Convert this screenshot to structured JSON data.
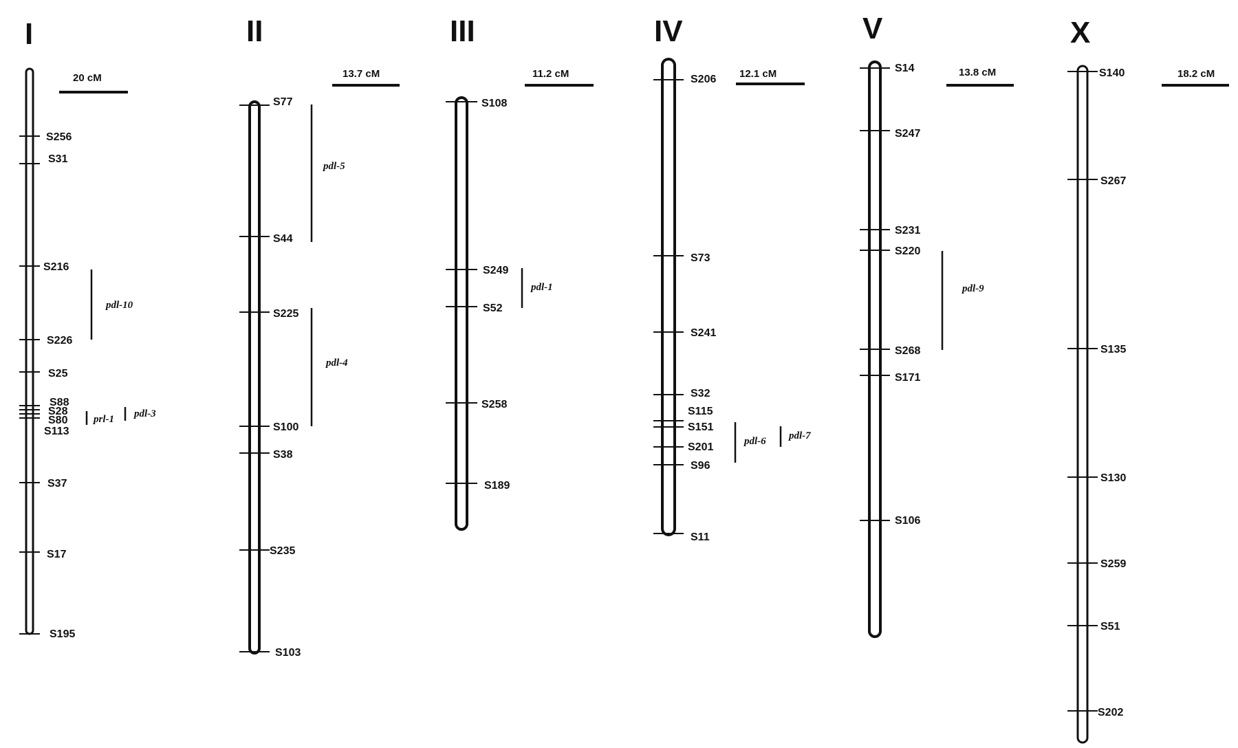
{
  "chromosomes": [
    {
      "name": "I",
      "scale": "20 cM",
      "markers": [
        "S256",
        "S31",
        "S216",
        "S226",
        "S25",
        "S88",
        "S28",
        "S80",
        "S113",
        "S37",
        "S17",
        "S195"
      ],
      "qtls": [
        "pdl-10",
        "prl-1",
        "pdl-3"
      ]
    },
    {
      "name": "II",
      "scale": "13.7 cM",
      "markers": [
        "S77",
        "S44",
        "S225",
        "S100",
        "S38",
        "S235",
        "S103"
      ],
      "qtls": [
        "pdl-5",
        "pdl-4"
      ]
    },
    {
      "name": "III",
      "scale": "11.2 cM",
      "markers": [
        "S108",
        "S249",
        "S52",
        "S258",
        "S189"
      ],
      "qtls": [
        "pdl-1"
      ]
    },
    {
      "name": "IV",
      "scale": "12.1 cM",
      "markers": [
        "S206",
        "S73",
        "S241",
        "S32",
        "S115",
        "S151",
        "S201",
        "S96",
        "S11"
      ],
      "qtls": [
        "pdl-6",
        "pdl-7"
      ]
    },
    {
      "name": "V",
      "scale": "13.8 cM",
      "markers": [
        "S14",
        "S247",
        "S231",
        "S220",
        "S268",
        "S171",
        "S106"
      ],
      "qtls": [
        "pdl-9"
      ]
    },
    {
      "name": "X",
      "scale": "18.2 cM",
      "markers": [
        "S140",
        "S267",
        "S135",
        "S130",
        "S259",
        "S51",
        "S202"
      ],
      "qtls": []
    }
  ]
}
